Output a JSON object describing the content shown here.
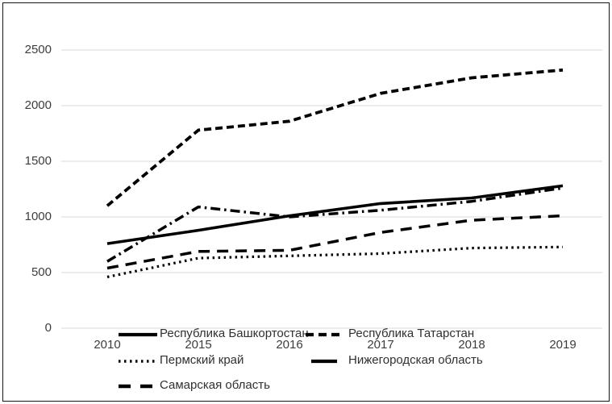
{
  "chart_data": {
    "type": "line",
    "x": [
      "2010",
      "2015",
      "2016",
      "2017",
      "2018",
      "2019"
    ],
    "series": [
      {
        "name": "Республика Башкортостан",
        "line_style": "solid",
        "color": "#000000",
        "values": [
          760,
          880,
          1010,
          1120,
          1170,
          1280
        ]
      },
      {
        "name": "Республика Татарстан",
        "line_style": "dash",
        "color": "#000000",
        "values": [
          1100,
          1780,
          1860,
          2110,
          2250,
          2320
        ]
      },
      {
        "name": "Пермский край",
        "line_style": "dot",
        "color": "#000000",
        "values": [
          460,
          630,
          650,
          670,
          720,
          730
        ]
      },
      {
        "name": "Нижегородская область",
        "line_style": "dash-dot",
        "color": "#000000",
        "values": [
          600,
          1090,
          1000,
          1060,
          1140,
          1260
        ]
      },
      {
        "name": "Самарская область",
        "line_style": "long-dash",
        "color": "#000000",
        "values": [
          540,
          690,
          700,
          860,
          970,
          1010
        ]
      }
    ],
    "title": "",
    "xlabel": "",
    "ylabel": "",
    "ylim": [
      0,
      2500
    ],
    "ytick_step": 500,
    "yticks": [
      "0",
      "500",
      "1000",
      "1500",
      "2000",
      "2500"
    ],
    "grid": "horizontal-only",
    "legend_position": "bottom",
    "grid_color": "#d9d9d9",
    "axis_text_color": "#3d3d3d",
    "background": "#ffffff"
  }
}
